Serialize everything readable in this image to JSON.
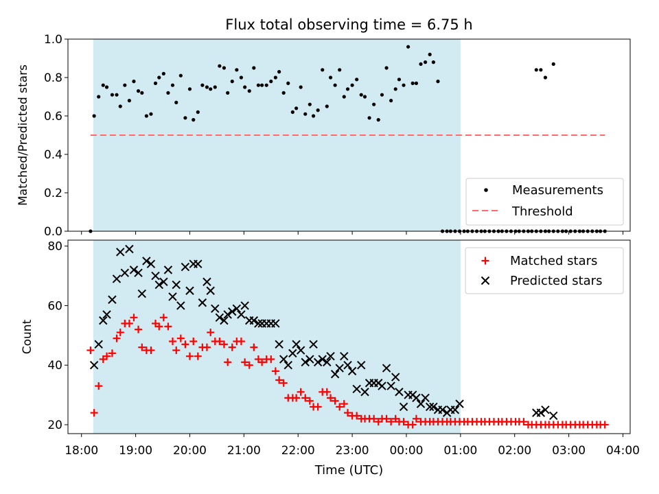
{
  "chart_data": [
    {
      "type": "scatter",
      "title": "Flux total observing time = 6.75 h",
      "xlabel": "",
      "ylabel": "Matched/Predicted stars",
      "xlim": [
        "17:45",
        "04:08"
      ],
      "ylim": [
        0,
        1.0
      ],
      "yticks": [
        0.0,
        0.2,
        0.4,
        0.6,
        0.8,
        1.0
      ],
      "ytick_labels": [
        "0.0",
        "0.2",
        "0.4",
        "0.6",
        "0.8",
        "1.0"
      ],
      "shaded_interval": [
        "18:13",
        "01:00"
      ],
      "threshold": {
        "name": "Threshold",
        "value": 0.5,
        "x_range": [
          "18:10",
          "03:40"
        ],
        "color": "#ff6b6b",
        "style": "dashed"
      },
      "legend": {
        "position": "lower right",
        "entries": [
          "Measurements",
          "Threshold"
        ]
      },
      "series": [
        {
          "name": "Measurements",
          "marker": "dot",
          "color": "#000000",
          "x": [
            "18:10",
            "18:14",
            "18:19",
            "18:24",
            "18:28",
            "18:34",
            "18:39",
            "18:43",
            "18:48",
            "18:53",
            "18:58",
            "19:03",
            "19:07",
            "19:12",
            "19:17",
            "19:22",
            "19:26",
            "19:31",
            "19:36",
            "19:41",
            "19:45",
            "19:50",
            "19:55",
            "20:00",
            "20:04",
            "20:09",
            "20:14",
            "20:19",
            "20:23",
            "20:28",
            "20:33",
            "20:38",
            "20:42",
            "20:47",
            "20:52",
            "20:57",
            "21:01",
            "21:06",
            "21:11",
            "21:16",
            "21:20",
            "21:25",
            "21:30",
            "21:35",
            "21:39",
            "21:44",
            "21:49",
            "21:54",
            "21:58",
            "22:03",
            "22:08",
            "22:13",
            "22:17",
            "22:22",
            "22:27",
            "22:32",
            "22:36",
            "22:41",
            "22:46",
            "22:51",
            "22:55",
            "23:00",
            "23:05",
            "23:10",
            "23:14",
            "23:19",
            "23:24",
            "23:29",
            "23:33",
            "23:38",
            "23:43",
            "23:48",
            "23:52",
            "23:57",
            "00:02",
            "00:07",
            "00:11",
            "00:16",
            "00:21",
            "00:26",
            "00:30",
            "00:35",
            "00:40",
            "00:45",
            "00:49",
            "00:54",
            "00:59",
            "01:04",
            "01:08",
            "01:13",
            "01:18",
            "01:23",
            "01:27",
            "01:32",
            "01:37",
            "01:42",
            "01:46",
            "01:51",
            "01:56",
            "02:01",
            "02:05",
            "02:10",
            "02:15",
            "02:19",
            "02:24",
            "02:29",
            "02:34",
            "02:38",
            "02:43",
            "02:48",
            "02:53",
            "02:57",
            "03:02",
            "03:07",
            "03:12",
            "03:16",
            "03:21",
            "03:26",
            "03:31",
            "03:35",
            "03:40",
            "02:24",
            "02:29",
            "02:34",
            "02:43"
          ],
          "y": [
            0.0,
            0.6,
            0.7,
            0.76,
            0.75,
            0.71,
            0.71,
            0.65,
            0.76,
            0.68,
            0.78,
            0.73,
            0.72,
            0.6,
            0.61,
            0.77,
            0.8,
            0.82,
            0.72,
            0.76,
            0.67,
            0.81,
            0.59,
            0.74,
            0.58,
            0.62,
            0.76,
            0.75,
            0.74,
            0.75,
            0.86,
            0.85,
            0.72,
            0.78,
            0.84,
            0.8,
            0.75,
            0.73,
            0.85,
            0.76,
            0.76,
            0.76,
            0.78,
            0.8,
            0.83,
            0.72,
            0.77,
            0.62,
            0.64,
            0.75,
            0.61,
            0.66,
            0.6,
            0.63,
            0.84,
            0.65,
            0.8,
            0.76,
            0.84,
            0.7,
            0.74,
            0.76,
            0.79,
            0.71,
            0.7,
            0.59,
            0.66,
            0.58,
            0.71,
            0.85,
            0.68,
            0.74,
            0.79,
            0.76,
            0.96,
            0.77,
            0.77,
            0.87,
            0.88,
            0.92,
            0.88,
            0.78,
            0.0,
            0.0,
            0.0,
            0.0,
            0.0,
            0.0,
            0.0,
            0.0,
            0.0,
            0.0,
            0.0,
            0.0,
            0.0,
            0.0,
            0.0,
            0.0,
            0.0,
            0.0,
            0.0,
            0.0,
            0.0,
            0.0,
            0.0,
            0.0,
            0.0,
            0.0,
            0.0,
            0.0,
            0.0,
            0.0,
            0.0,
            0.0,
            0.0,
            0.0,
            0.0,
            0.0,
            0.0,
            0.0,
            0.0,
            0.84,
            0.84,
            0.8,
            0.87
          ]
        }
      ]
    },
    {
      "type": "scatter",
      "title": "",
      "xlabel": "Time (UTC)",
      "ylabel": "Count",
      "xlim": [
        "17:45",
        "04:08"
      ],
      "ylim": [
        17,
        82
      ],
      "yticks": [
        20,
        40,
        60,
        80
      ],
      "ytick_labels": [
        "20",
        "40",
        "60",
        "80"
      ],
      "xticks": [
        "18:00",
        "19:00",
        "20:00",
        "21:00",
        "22:00",
        "23:00",
        "00:00",
        "01:00",
        "02:00",
        "03:00",
        "04:00"
      ],
      "xtick_labels": [
        "18:00",
        "19:00",
        "20:00",
        "21:00",
        "22:00",
        "23:00",
        "00:00",
        "01:00",
        "02:00",
        "03:00",
        "04:00"
      ],
      "shaded_interval": [
        "18:13",
        "01:00"
      ],
      "legend": {
        "position": "upper right",
        "entries": [
          "Matched stars",
          "Predicted stars"
        ]
      },
      "series": [
        {
          "name": "Matched stars",
          "marker": "plus",
          "color": "#ff0000",
          "x": [
            "18:10",
            "18:14",
            "18:19",
            "18:24",
            "18:28",
            "18:34",
            "18:39",
            "18:43",
            "18:48",
            "18:53",
            "18:58",
            "19:03",
            "19:07",
            "19:12",
            "19:17",
            "19:22",
            "19:26",
            "19:31",
            "19:36",
            "19:41",
            "19:45",
            "19:50",
            "19:55",
            "20:00",
            "20:04",
            "20:09",
            "20:14",
            "20:19",
            "20:23",
            "20:28",
            "20:33",
            "20:38",
            "20:42",
            "20:47",
            "20:52",
            "20:57",
            "21:01",
            "21:06",
            "21:11",
            "21:16",
            "21:20",
            "21:25",
            "21:30",
            "21:35",
            "21:39",
            "21:44",
            "21:49",
            "21:54",
            "21:58",
            "22:03",
            "22:08",
            "22:13",
            "22:17",
            "22:22",
            "22:27",
            "22:32",
            "22:36",
            "22:41",
            "22:46",
            "22:51",
            "22:55",
            "23:00",
            "23:05",
            "23:10",
            "23:14",
            "23:19",
            "23:24",
            "23:29",
            "23:33",
            "23:38",
            "23:43",
            "23:48",
            "23:52",
            "23:57",
            "00:02",
            "00:07",
            "00:11",
            "00:16",
            "00:21",
            "00:26",
            "00:30",
            "00:35",
            "00:40",
            "00:45",
            "00:49",
            "00:54",
            "00:59",
            "01:04",
            "01:08",
            "01:13",
            "01:18",
            "01:23",
            "01:27",
            "01:32",
            "01:37",
            "01:42",
            "01:46",
            "01:51",
            "01:56",
            "02:01",
            "02:05",
            "02:10",
            "02:15",
            "02:19",
            "02:24",
            "02:29",
            "02:34",
            "02:38",
            "02:43",
            "02:48",
            "02:53",
            "02:57",
            "03:02",
            "03:07",
            "03:12",
            "03:16",
            "03:21",
            "03:26",
            "03:31",
            "03:35",
            "03:40"
          ],
          "y": [
            45,
            24,
            33,
            42,
            43,
            44,
            49,
            51,
            54,
            54,
            56,
            52,
            46,
            45,
            45,
            54,
            53,
            56,
            53,
            48,
            45,
            49,
            47,
            43,
            48,
            43,
            46,
            46,
            51,
            48,
            48,
            47,
            41,
            46,
            48,
            48,
            41,
            40,
            46,
            42,
            41,
            42,
            42,
            38,
            35,
            34,
            29,
            29,
            29,
            31,
            29,
            28,
            26,
            26,
            31,
            31,
            29,
            28,
            26,
            27,
            24,
            23,
            23,
            22,
            22,
            22,
            22,
            21,
            22,
            22,
            21,
            22,
            21,
            21,
            20,
            20,
            22,
            21,
            21,
            21,
            21,
            21,
            21,
            21,
            21,
            21,
            21,
            21,
            21,
            21,
            21,
            21,
            21,
            21,
            21,
            21,
            21,
            21,
            21,
            21,
            21,
            21,
            20,
            20,
            20,
            20,
            20,
            20,
            20,
            20,
            20,
            20,
            20,
            20,
            20,
            20,
            20,
            20,
            20,
            20,
            20
          ]
        },
        {
          "name": "Predicted stars",
          "marker": "x",
          "color": "#000000",
          "x": [
            "18:14",
            "18:19",
            "18:24",
            "18:28",
            "18:34",
            "18:39",
            "18:43",
            "18:48",
            "18:53",
            "18:58",
            "19:03",
            "19:07",
            "19:12",
            "19:17",
            "19:22",
            "19:26",
            "19:31",
            "19:36",
            "19:41",
            "19:45",
            "19:50",
            "19:55",
            "20:00",
            "20:04",
            "20:09",
            "20:14",
            "20:19",
            "20:23",
            "20:28",
            "20:33",
            "20:38",
            "20:42",
            "20:47",
            "20:52",
            "20:57",
            "21:01",
            "21:06",
            "21:11",
            "21:16",
            "21:20",
            "21:25",
            "21:30",
            "21:35",
            "21:39",
            "21:44",
            "21:49",
            "21:54",
            "21:58",
            "22:03",
            "22:08",
            "22:13",
            "22:17",
            "22:22",
            "22:27",
            "22:32",
            "22:36",
            "22:41",
            "22:46",
            "22:51",
            "22:55",
            "23:00",
            "23:05",
            "23:10",
            "23:14",
            "23:19",
            "23:24",
            "23:29",
            "23:33",
            "23:38",
            "23:43",
            "23:48",
            "23:52",
            "23:57",
            "00:02",
            "00:07",
            "00:11",
            "00:16",
            "00:21",
            "00:26",
            "00:30",
            "00:35",
            "00:40",
            "00:45",
            "00:49",
            "00:54",
            "00:59",
            "02:24",
            "02:29",
            "02:34",
            "02:43"
          ],
          "y": [
            40,
            47,
            55,
            57,
            62,
            69,
            78,
            71,
            79,
            72,
            71,
            64,
            75,
            74,
            70,
            67,
            68,
            72,
            63,
            67,
            60,
            73,
            65,
            74,
            74,
            61,
            68,
            65,
            59,
            56,
            55,
            57,
            58,
            59,
            57,
            60,
            55,
            55,
            54,
            54,
            54,
            54,
            54,
            47,
            42,
            40,
            44,
            47,
            45,
            41,
            42,
            47,
            41,
            42,
            41,
            43,
            37,
            39,
            43,
            40,
            38,
            32,
            40,
            31,
            34,
            34,
            34,
            33,
            39,
            33,
            36,
            31,
            26,
            30,
            30,
            29,
            27,
            29,
            26,
            26,
            25,
            25,
            24,
            25,
            25,
            27,
            24,
            24,
            25,
            23
          ]
        }
      ]
    }
  ]
}
